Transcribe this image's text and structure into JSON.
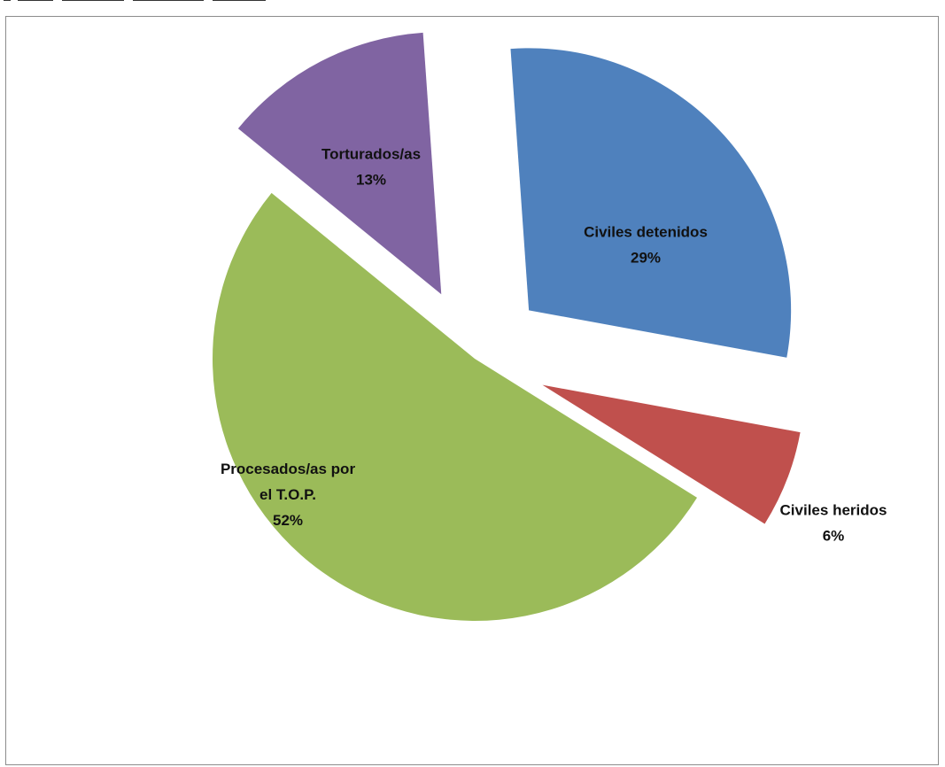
{
  "chart_data": {
    "type": "pie",
    "title": "",
    "exploded": true,
    "categories": [
      "Civiles detenidos",
      "Civiles heridos",
      "Procesados/as por el T.O.P.",
      "Torturados/as"
    ],
    "values": [
      29,
      6,
      52,
      13
    ],
    "value_labels": [
      "29%",
      "6%",
      "52%",
      "13%"
    ],
    "label_lines": [
      [
        "Civiles detenidos"
      ],
      [
        "Civiles heridos"
      ],
      [
        "Procesados/as por",
        "el T.O.P."
      ],
      [
        "Torturados/as"
      ]
    ],
    "colors": [
      "#4f81bd",
      "#c0504d",
      "#9bbb59",
      "#8064a2"
    ],
    "label_placement": [
      "inside",
      "outside",
      "inside",
      "inside"
    ],
    "legend": "none"
  }
}
